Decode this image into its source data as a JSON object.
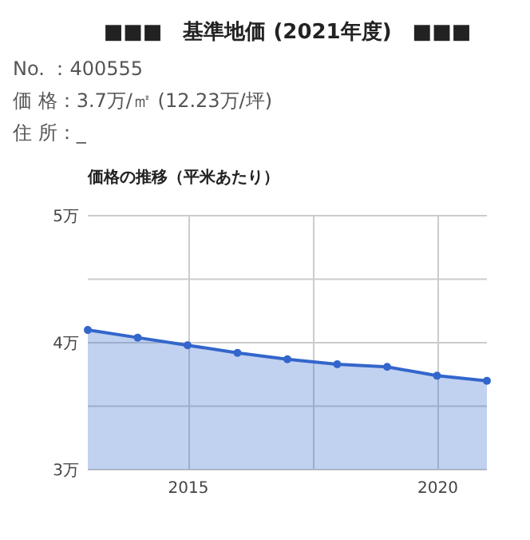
{
  "chart_data": {
    "type": "area",
    "title": "■■■　基準地価 (2021年度)　■■■",
    "annotations": [
      "No. ：400555",
      "価 格：3.7万/㎡ (12.23万/坪)",
      "住 所：_"
    ],
    "subtitle": "価格の推移（平米あたり）",
    "x": [
      2013,
      2014,
      2015,
      2016,
      2017,
      2018,
      2019,
      2020,
      2021
    ],
    "series": [
      {
        "color": "#3366cc",
        "values": [
          4.1,
          4.04,
          3.98,
          3.92,
          3.87,
          3.83,
          3.81,
          3.74,
          3.7
        ]
      }
    ],
    "xlim": [
      2013,
      2021
    ],
    "xticks": [
      2015,
      {
        "value": 2017.5,
        "label": null
      },
      2020
    ],
    "ylim": [
      3,
      5
    ],
    "yticks": [
      {
        "value": 3,
        "label": "3万"
      },
      {
        "value": 3.5,
        "label": null
      },
      {
        "value": 4,
        "label": "4万"
      },
      {
        "value": 4.5,
        "label": null
      },
      {
        "value": 5,
        "label": "5万"
      }
    ],
    "grid": true,
    "marker": "circle",
    "line_style": "solid"
  }
}
